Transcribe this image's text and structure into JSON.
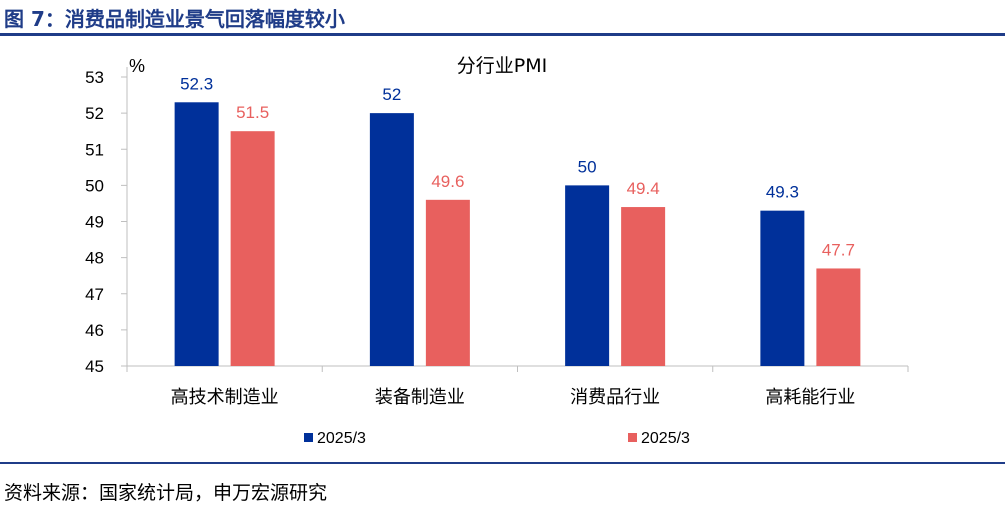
{
  "figure": {
    "title": "图 7：消费品制造业景气回落幅度较小",
    "source": "资料来源：国家统计局，申万宏源研究"
  },
  "colors": {
    "series1": "#00309a",
    "series2": "#e8605e",
    "accent": "#1f3c88"
  },
  "chart_data": {
    "type": "bar",
    "title": "分行业PMI",
    "ylabel": "%",
    "xlabel": "",
    "ylim": [
      45,
      53
    ],
    "yticks": [
      45,
      46,
      47,
      48,
      49,
      50,
      51,
      52,
      53
    ],
    "grid": false,
    "legend": "bottom",
    "categories": [
      "高技术制造业",
      "装备制造业",
      "消费品行业",
      "高耗能行业"
    ],
    "series": [
      {
        "name": "2025/3",
        "values": [
          52.3,
          52,
          50,
          49.3
        ],
        "labels": [
          "52.3",
          "52",
          "50",
          "49.3"
        ],
        "color": "#00309a",
        "label_color": "#00309a"
      },
      {
        "name": "2025/3",
        "values": [
          51.5,
          49.6,
          49.4,
          47.7
        ],
        "labels": [
          "51.5",
          "49.6",
          "49.4",
          "47.7"
        ],
        "color": "#e8605e",
        "label_color": "#e8605e"
      }
    ]
  }
}
